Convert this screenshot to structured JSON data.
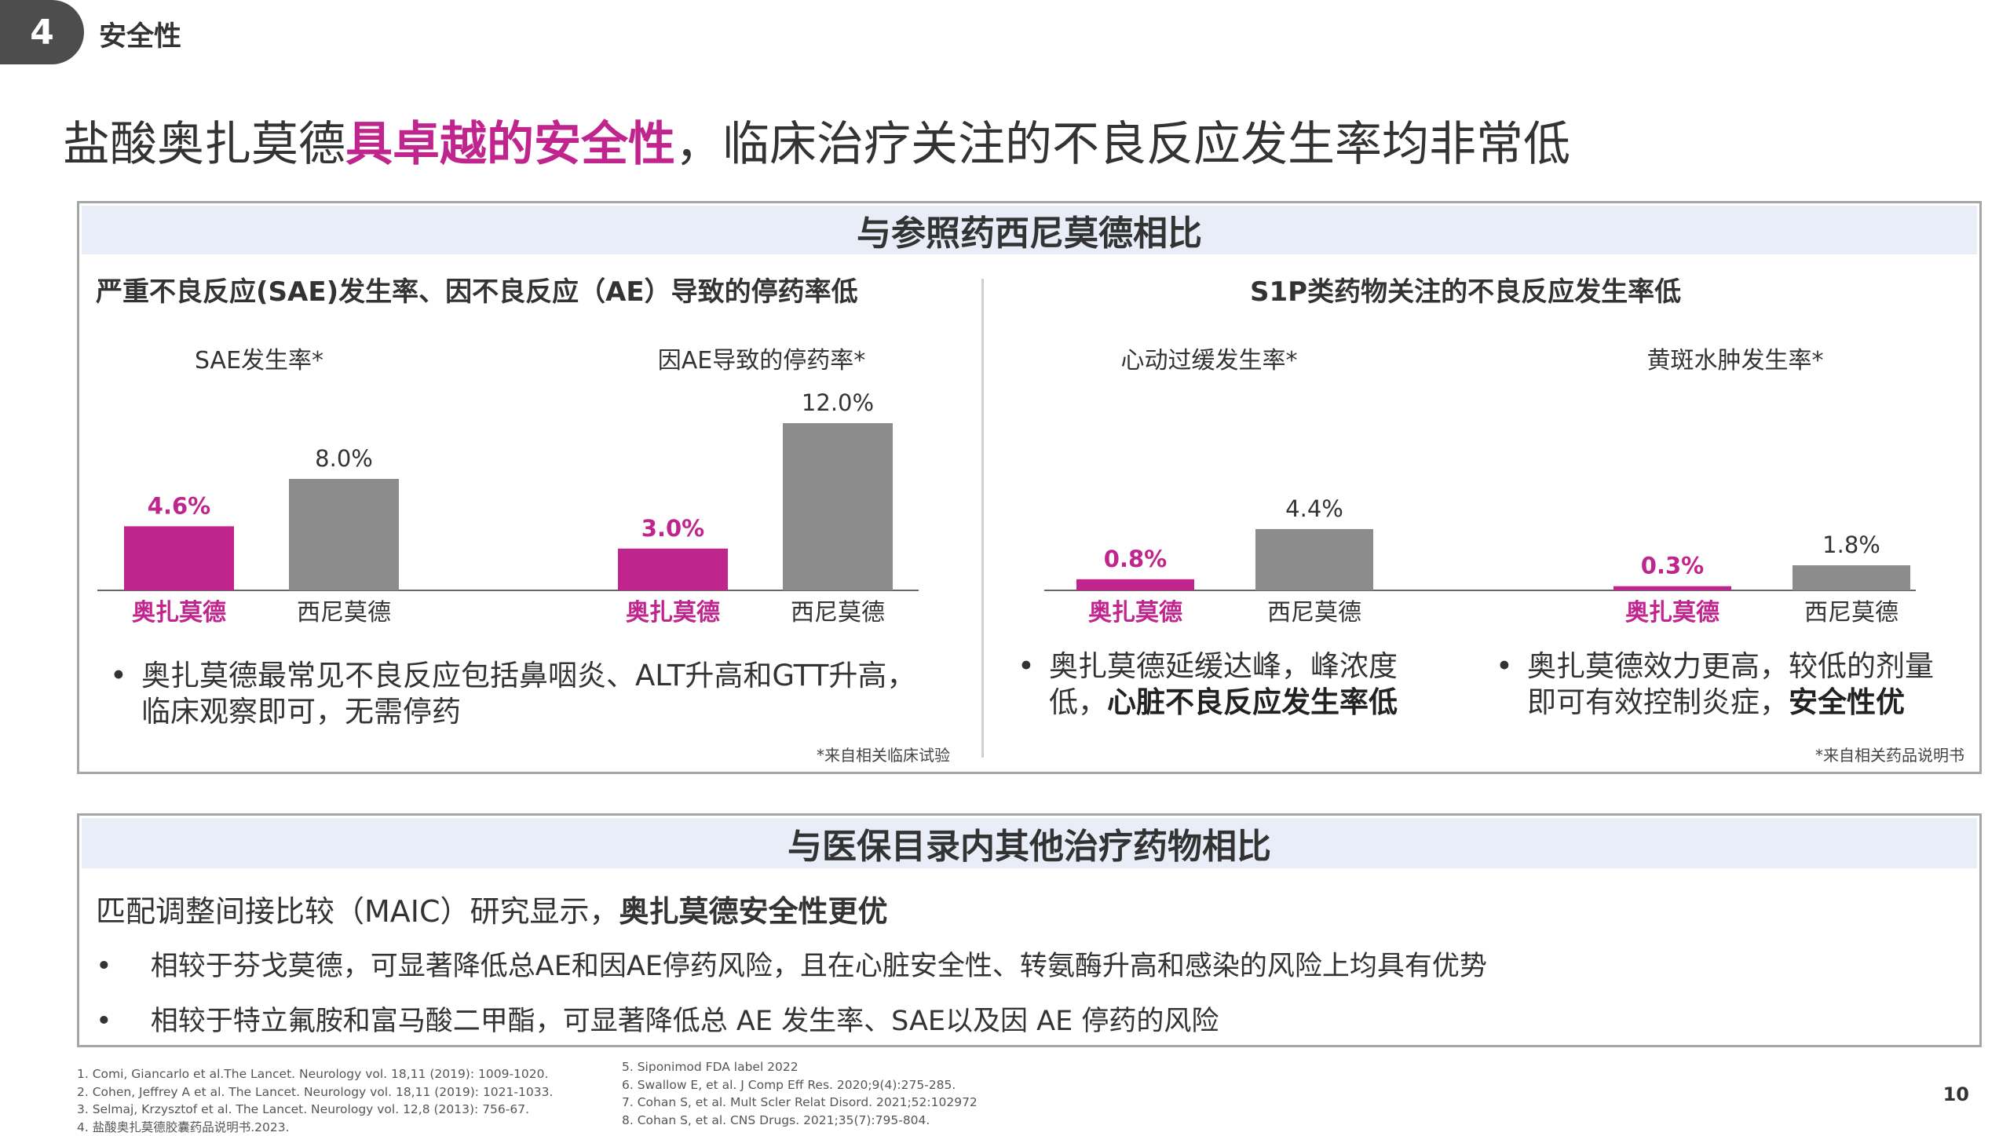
{
  "section": {
    "number": "4",
    "title": "安全性"
  },
  "title": {
    "pre": "盐酸奥扎莫德",
    "highlight": "具卓越的安全性",
    "post": "，临床治疗关注的不良反应发生率均非常低"
  },
  "colors": {
    "accent": "#c0258e",
    "reference": "#8c8c8c",
    "header_bg": "#e8edf8",
    "border": "#a6a6a6"
  },
  "box1": {
    "header": "与参照药西尼莫德相比",
    "left_subtitle": "严重不良反应(SAE)发生率、因不良反应（AE）导致的停药率低",
    "right_subtitle": "S1P类药物关注的不良反应发生率低",
    "left_bullet": "奥扎莫德最常见不良反应包括鼻咽炎、ALT升高和GTT升高，临床观察即可，无需停药",
    "right_bullet1": {
      "text": "奥扎莫德延缓达峰，峰浓度低，",
      "bold": "心脏不良反应发生率低"
    },
    "right_bullet2": {
      "text": "奥扎莫德效力更高，较低的剂量即可有效控制炎症，",
      "bold": "安全性优"
    },
    "left_note": "*来自相关临床试验",
    "right_note": "*来自相关药品说明书"
  },
  "chart_data": [
    {
      "type": "bar",
      "title": "SAE发生率*",
      "categories": [
        "奥扎莫德",
        "西尼莫德"
      ],
      "values": [
        4.6,
        8.0
      ],
      "value_labels": [
        "4.6%",
        "8.0%"
      ]
    },
    {
      "type": "bar",
      "title": "因AE导致的停药率*",
      "categories": [
        "奥扎莫德",
        "西尼莫德"
      ],
      "values": [
        3.0,
        12.0
      ],
      "value_labels": [
        "3.0%",
        "12.0%"
      ]
    },
    {
      "type": "bar",
      "title": "心动过缓发生率*",
      "categories": [
        "奥扎莫德",
        "西尼莫德"
      ],
      "values": [
        0.8,
        4.4
      ],
      "value_labels": [
        "0.8%",
        "4.4%"
      ]
    },
    {
      "type": "bar",
      "title": "黄斑水肿发生率*",
      "categories": [
        "奥扎莫德",
        "西尼莫德"
      ],
      "values": [
        0.3,
        1.8
      ],
      "value_labels": [
        "0.3%",
        "1.8%"
      ]
    }
  ],
  "box2": {
    "header": "与医保目录内其他治疗药物相比",
    "intro": {
      "text": "匹配调整间接比较（MAIC）研究显示，",
      "bold": "奥扎莫德安全性更优"
    },
    "bullets": [
      "相较于芬戈莫德，可显著降低总AE和因AE停药风险，且在心脏安全性、转氨酶升高和感染的风险上均具有优势",
      "相较于特立氟胺和富马酸二甲酯，可显著降低总 AE 发生率、SAE以及因 AE 停药的风险"
    ]
  },
  "references": {
    "left": [
      "1.   Comi, Giancarlo et al.The Lancet. Neurology vol. 18,11 (2019): 1009-1020.",
      "2.   Cohen, Jeffrey A et al. The Lancet. Neurology vol. 18,11 (2019): 1021-1033.",
      "3.   Selmaj, Krzysztof et al. The Lancet. Neurology vol. 12,8 (2013): 756-67.",
      "4.   盐酸奥扎莫德胶囊药品说明书.2023."
    ],
    "right": [
      "5.   Siponimod FDA label 2022",
      "6.   Swallow E, et al. J Comp Eff Res. 2020;9(4):275-285.",
      "7.   Cohan S, et al. Mult Scler Relat Disord. 2021;52:102972",
      "8.   Cohan S, et al. CNS Drugs. 2021;35(7):795-804."
    ]
  },
  "page_number": "10"
}
